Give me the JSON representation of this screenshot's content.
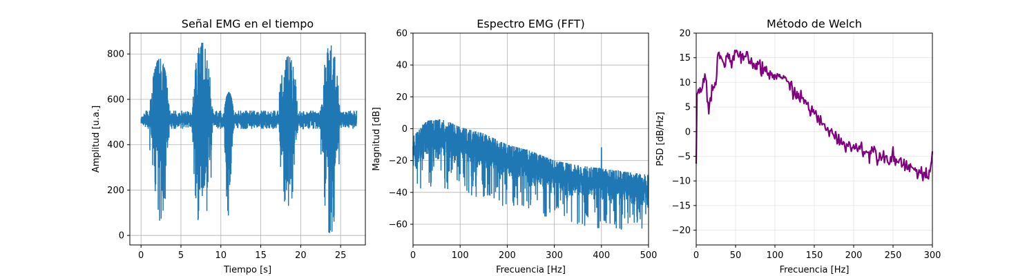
{
  "chart_data": [
    {
      "type": "line",
      "title": "Señal EMG en el tiempo",
      "xlabel": "Tiempo [s]",
      "ylabel": "Amplitud [u.a.]",
      "xlim": [
        -1.4,
        28.1
      ],
      "ylim": [
        -42,
        892
      ],
      "xticks": [
        0,
        5,
        10,
        15,
        20,
        25
      ],
      "yticks": [
        0,
        200,
        400,
        600,
        800
      ],
      "grid": true,
      "color": "#1f77b4",
      "baseline": 510,
      "duration": 27,
      "bursts": [
        {
          "t_start": 1.1,
          "t_end": 3.6,
          "max": 780,
          "min": 65
        },
        {
          "t_start": 6.3,
          "t_end": 9.0,
          "max": 850,
          "min": 0
        },
        {
          "t_start": 10.4,
          "t_end": 11.6,
          "max": 630,
          "min": 85
        },
        {
          "t_start": 17.2,
          "t_end": 19.7,
          "max": 790,
          "min": 110
        },
        {
          "t_start": 22.5,
          "t_end": 24.9,
          "max": 840,
          "min": 0
        }
      ]
    },
    {
      "type": "line",
      "title": "Espectro EMG (FFT)",
      "xlabel": "Frecuencia [Hz]",
      "ylabel": "Magnitud [dB]",
      "xlim": [
        0,
        500
      ],
      "ylim": [
        -73,
        60
      ],
      "xticks": [
        0,
        100,
        200,
        300,
        400,
        500
      ],
      "yticks": [
        -60,
        -40,
        -20,
        0,
        20,
        40,
        60
      ],
      "grid": true,
      "color": "#1f77b4",
      "envelope": [
        {
          "x": 0,
          "upper": -5,
          "lower": -30
        },
        {
          "x": 30,
          "upper": 5,
          "lower": -25
        },
        {
          "x": 60,
          "upper": 6,
          "lower": -25
        },
        {
          "x": 100,
          "upper": 1,
          "lower": -28
        },
        {
          "x": 150,
          "upper": -3,
          "lower": -32
        },
        {
          "x": 200,
          "upper": -10,
          "lower": -38
        },
        {
          "x": 250,
          "upper": -14,
          "lower": -40
        },
        {
          "x": 300,
          "upper": -20,
          "lower": -46
        },
        {
          "x": 350,
          "upper": -23,
          "lower": -49
        },
        {
          "x": 400,
          "upper": -25,
          "lower": -51
        },
        {
          "x": 450,
          "upper": -27,
          "lower": -52
        },
        {
          "x": 500,
          "upper": -29,
          "lower": -53
        }
      ],
      "peak": {
        "x": 400,
        "y": -12
      }
    },
    {
      "type": "line",
      "title": "Método de Welch",
      "xlabel": "Frecuencia [Hz]",
      "ylabel": "PSD [dB/Hz]",
      "xlim": [
        0,
        300
      ],
      "ylim": [
        -23,
        20
      ],
      "xticks": [
        0,
        50,
        100,
        150,
        200,
        250,
        300
      ],
      "yticks": [
        -20,
        -15,
        -10,
        -5,
        0,
        5,
        10,
        15,
        20
      ],
      "grid": true,
      "color": "#800080",
      "x": [
        0,
        1,
        3,
        8,
        12,
        16,
        20,
        25,
        28,
        30,
        35,
        40,
        45,
        50,
        55,
        60,
        65,
        70,
        75,
        80,
        85,
        90,
        95,
        100,
        105,
        110,
        115,
        120,
        125,
        130,
        135,
        140,
        145,
        150,
        155,
        160,
        165,
        170,
        175,
        180,
        185,
        190,
        195,
        200,
        205,
        210,
        215,
        220,
        225,
        230,
        235,
        240,
        245,
        250,
        255,
        260,
        265,
        270,
        275,
        280,
        285,
        290,
        295,
        298,
        300
      ],
      "y": [
        -6.5,
        7.5,
        8.5,
        9.0,
        11.5,
        5.0,
        8.0,
        10.5,
        16.5,
        15.0,
        14.0,
        15.5,
        14.0,
        16.5,
        15.0,
        14.5,
        15.0,
        14.0,
        13.5,
        13.0,
        12.5,
        12.0,
        11.5,
        11.0,
        12.0,
        10.5,
        10.0,
        9.5,
        8.0,
        7.0,
        6.5,
        6.0,
        4.5,
        3.5,
        2.5,
        1.5,
        1.0,
        0.0,
        -1.0,
        -1.5,
        -2.0,
        -2.5,
        -3.0,
        -3.0,
        -3.5,
        -3.0,
        -4.0,
        -4.5,
        -3.5,
        -5.0,
        -4.5,
        -5.0,
        -5.5,
        -5.0,
        -6.0,
        -6.0,
        -6.5,
        -7.0,
        -7.5,
        -8.0,
        -8.5,
        -9.0,
        -9.5,
        -8.0,
        -4.0
      ]
    }
  ]
}
